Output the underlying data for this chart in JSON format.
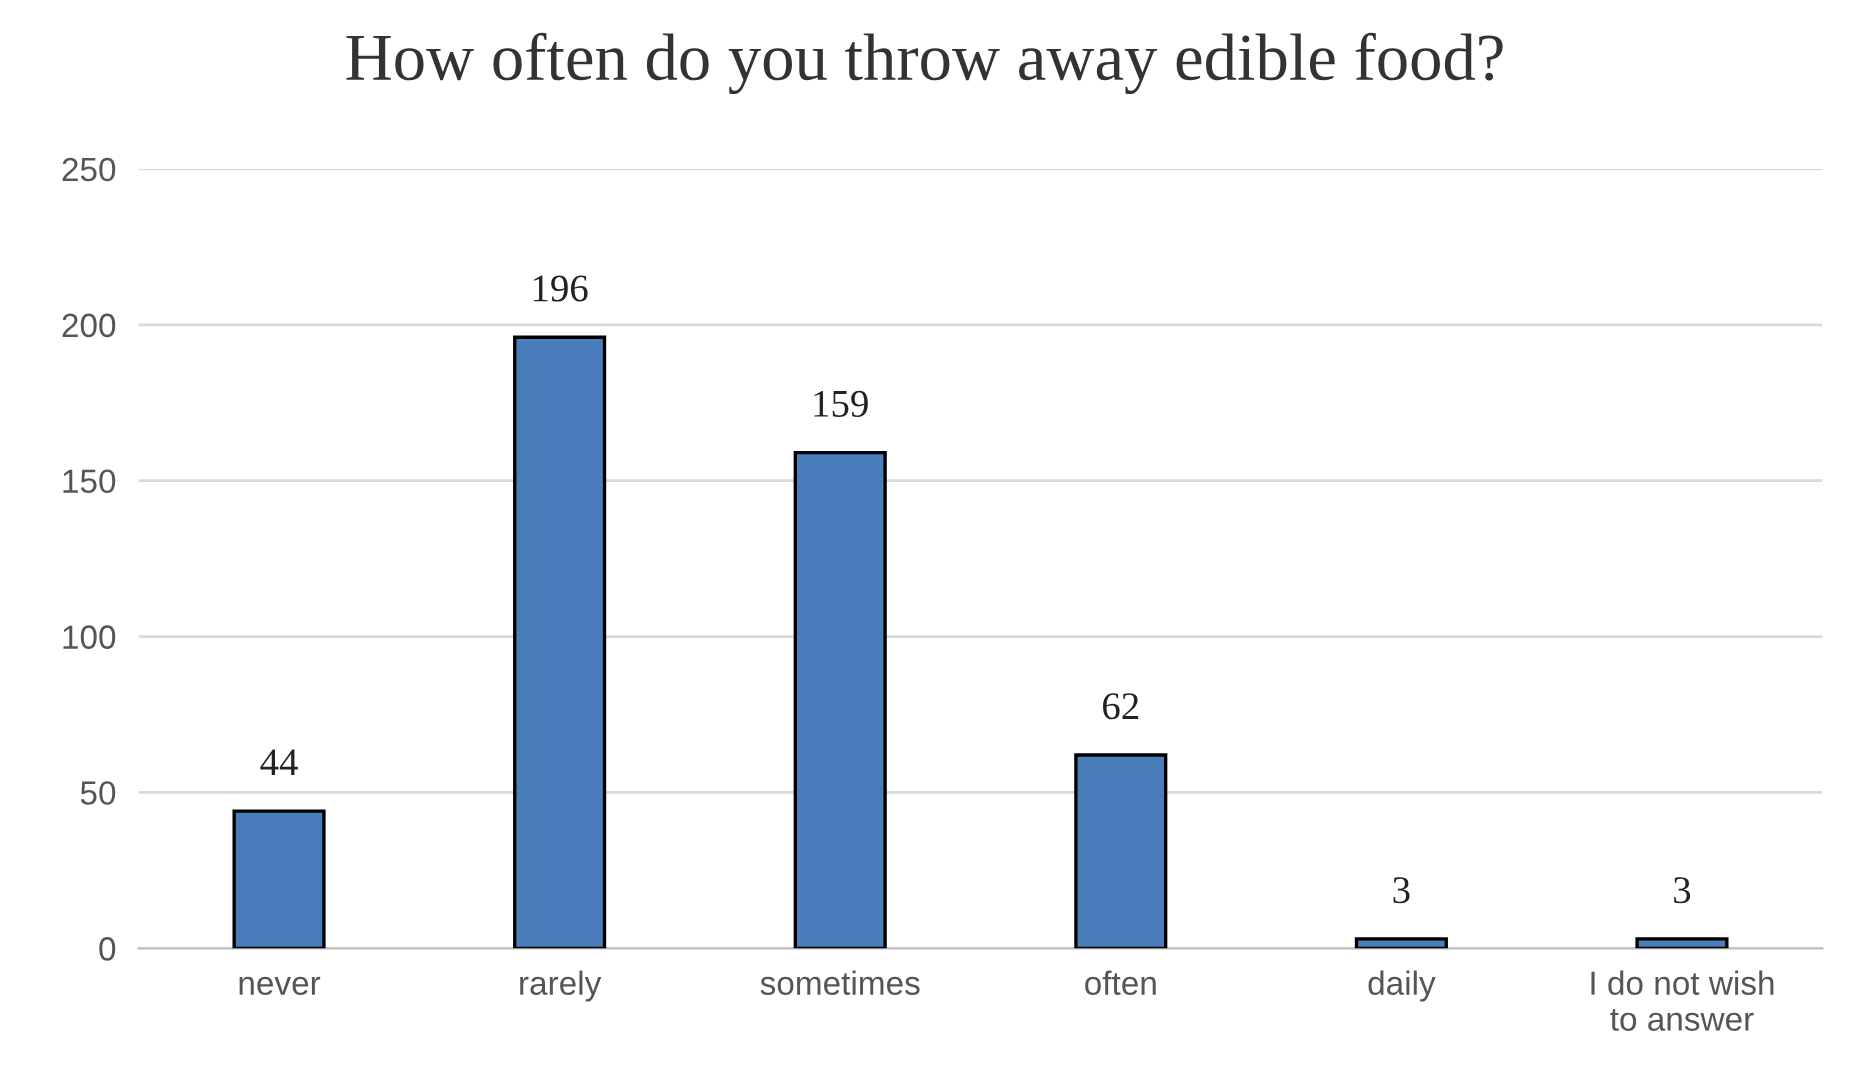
{
  "chart_data": {
    "type": "bar",
    "title": "How often do you throw away edible food?",
    "categories": [
      "never",
      "rarely",
      "sometimes",
      "often",
      "daily",
      "I do not wish\nto answer"
    ],
    "values": [
      44,
      196,
      159,
      62,
      3,
      3
    ],
    "color": "#4a7ebb",
    "ylim": [
      0,
      250
    ],
    "yticks": [
      0,
      50,
      100,
      150,
      200,
      250
    ],
    "grid": "y",
    "data_labels": true,
    "legend": false
  }
}
